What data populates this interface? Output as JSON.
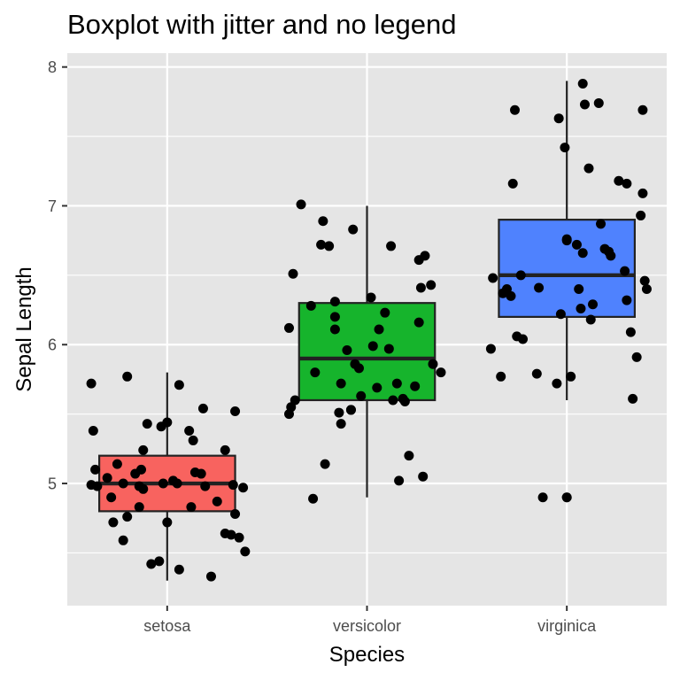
{
  "chart_data": {
    "type": "boxplot",
    "title": "Boxplot with jitter and no legend",
    "xlabel": "Species",
    "ylabel": "Sepal Length",
    "categories": [
      "setosa",
      "versicolor",
      "virginica"
    ],
    "ylim": [
      4.12,
      8.1
    ],
    "yticks": [
      5,
      6,
      7,
      8
    ],
    "grid": true,
    "legend": "none",
    "colors": {
      "panel": "#e5e5e5",
      "grid": "#ffffff",
      "box_outline": "#222222",
      "points": "#000000",
      "fills": [
        "#f8635f",
        "#16b42c",
        "#4f82fe"
      ]
    },
    "boxes": [
      {
        "category": "setosa",
        "min": 4.3,
        "q1": 4.8,
        "median": 5.0,
        "q3": 5.2,
        "max": 5.8,
        "outliers": []
      },
      {
        "category": "versicolor",
        "min": 4.9,
        "q1": 5.6,
        "median": 5.9,
        "q3": 6.3,
        "max": 7.0,
        "outliers": []
      },
      {
        "category": "virginica",
        "min": 5.6,
        "q1": 6.2,
        "median": 6.5,
        "q3": 6.9,
        "max": 7.9,
        "outliers": [
          4.9
        ]
      }
    ],
    "points": [
      [
        [
          -0.38,
          5.72
        ],
        [
          -0.37,
          5.38
        ],
        [
          -0.36,
          5.1
        ],
        [
          -0.38,
          4.99
        ],
        [
          -0.35,
          4.98
        ],
        [
          -0.3,
          5.04
        ],
        [
          -0.27,
          4.72
        ],
        [
          -0.28,
          4.9
        ],
        [
          -0.25,
          5.14
        ],
        [
          -0.2,
          4.76
        ],
        [
          -0.22,
          5.0
        ],
        [
          -0.22,
          4.59
        ],
        [
          -0.2,
          5.77
        ],
        [
          -0.16,
          5.07
        ],
        [
          -0.14,
          4.98
        ],
        [
          -0.13,
          5.1
        ],
        [
          -0.14,
          4.83
        ],
        [
          -0.12,
          4.96
        ],
        [
          -0.12,
          5.24
        ],
        [
          -0.1,
          5.43
        ],
        [
          -0.08,
          4.42
        ],
        [
          -0.04,
          4.44
        ],
        [
          -0.03,
          5.41
        ],
        [
          -0.02,
          5.0
        ],
        [
          0.0,
          4.72
        ],
        [
          0.0,
          5.44
        ],
        [
          0.03,
          5.02
        ],
        [
          0.05,
          5.0
        ],
        [
          0.06,
          4.38
        ],
        [
          0.06,
          5.71
        ],
        [
          0.11,
          5.38
        ],
        [
          0.13,
          5.31
        ],
        [
          0.12,
          4.83
        ],
        [
          0.14,
          5.08
        ],
        [
          0.17,
          5.07
        ],
        [
          0.18,
          5.54
        ],
        [
          0.19,
          4.98
        ],
        [
          0.22,
          4.33
        ],
        [
          0.25,
          4.87
        ],
        [
          0.29,
          5.24
        ],
        [
          0.29,
          4.64
        ],
        [
          0.32,
          4.63
        ],
        [
          0.33,
          4.99
        ],
        [
          0.34,
          4.78
        ],
        [
          0.34,
          5.52
        ],
        [
          0.36,
          4.61
        ],
        [
          0.38,
          4.97
        ],
        [
          0.39,
          4.51
        ]
      ],
      [
        [
          -0.39,
          5.5
        ],
        [
          -0.39,
          6.12
        ],
        [
          -0.38,
          5.55
        ],
        [
          -0.36,
          5.6
        ],
        [
          -0.37,
          6.51
        ],
        [
          -0.33,
          7.01
        ],
        [
          -0.28,
          6.28
        ],
        [
          -0.27,
          4.89
        ],
        [
          -0.26,
          5.8
        ],
        [
          -0.23,
          6.72
        ],
        [
          -0.22,
          6.89
        ],
        [
          -0.21,
          5.14
        ],
        [
          -0.19,
          6.71
        ],
        [
          -0.16,
          6.31
        ],
        [
          -0.16,
          6.11
        ],
        [
          -0.16,
          6.2
        ],
        [
          -0.14,
          5.51
        ],
        [
          -0.13,
          5.72
        ],
        [
          -0.13,
          5.43
        ],
        [
          -0.1,
          5.96
        ],
        [
          -0.08,
          5.53
        ],
        [
          -0.08,
          5.53
        ],
        [
          -0.07,
          6.83
        ],
        [
          -0.06,
          5.86
        ],
        [
          -0.04,
          5.83
        ],
        [
          -0.03,
          5.63
        ],
        [
          0.02,
          6.34
        ],
        [
          0.03,
          5.99
        ],
        [
          0.05,
          5.69
        ],
        [
          0.06,
          6.11
        ],
        [
          0.09,
          6.23
        ],
        [
          0.11,
          5.97
        ],
        [
          0.12,
          6.71
        ],
        [
          0.13,
          5.6
        ],
        [
          0.15,
          5.72
        ],
        [
          0.16,
          5.02
        ],
        [
          0.18,
          5.61
        ],
        [
          0.19,
          5.59
        ],
        [
          0.21,
          5.2
        ],
        [
          0.24,
          5.7
        ],
        [
          0.26,
          6.16
        ],
        [
          0.26,
          6.61
        ],
        [
          0.27,
          6.41
        ],
        [
          0.28,
          5.05
        ],
        [
          0.29,
          6.64
        ],
        [
          0.32,
          6.43
        ],
        [
          0.33,
          5.86
        ],
        [
          0.37,
          5.8
        ]
      ],
      [
        [
          -0.38,
          5.97
        ],
        [
          -0.37,
          6.48
        ],
        [
          -0.33,
          5.77
        ],
        [
          -0.32,
          6.37
        ],
        [
          -0.3,
          6.4
        ],
        [
          -0.28,
          6.35
        ],
        [
          -0.27,
          7.16
        ],
        [
          -0.25,
          6.06
        ],
        [
          -0.26,
          7.69
        ],
        [
          -0.23,
          6.5
        ],
        [
          -0.22,
          6.04
        ],
        [
          -0.15,
          5.79
        ],
        [
          -0.14,
          6.41
        ],
        [
          -0.12,
          4.9
        ],
        [
          -0.05,
          5.72
        ],
        [
          -0.04,
          7.63
        ],
        [
          -0.03,
          6.22
        ],
        [
          -0.01,
          7.42
        ],
        [
          0.0,
          6.75
        ],
        [
          0.0,
          6.76
        ],
        [
          0.02,
          5.77
        ],
        [
          0.05,
          6.72
        ],
        [
          0.06,
          6.4
        ],
        [
          0.07,
          6.26
        ],
        [
          0.08,
          7.88
        ],
        [
          0.08,
          6.66
        ],
        [
          0.09,
          7.73
        ],
        [
          0.11,
          7.27
        ],
        [
          0.13,
          6.29
        ],
        [
          0.12,
          6.18
        ],
        [
          0.16,
          7.74
        ],
        [
          0.17,
          6.87
        ],
        [
          0.19,
          6.69
        ],
        [
          0.21,
          6.67
        ],
        [
          0.22,
          6.64
        ],
        [
          0.26,
          7.18
        ],
        [
          0.29,
          6.53
        ],
        [
          0.3,
          7.16
        ],
        [
          0.3,
          6.32
        ],
        [
          0.32,
          6.09
        ],
        [
          0.33,
          5.61
        ],
        [
          0.35,
          5.91
        ],
        [
          0.37,
          6.93
        ],
        [
          0.38,
          7.09
        ],
        [
          0.38,
          7.69
        ],
        [
          0.39,
          6.46
        ],
        [
          0.4,
          6.4
        ],
        [
          0.0,
          4.9
        ]
      ]
    ]
  }
}
